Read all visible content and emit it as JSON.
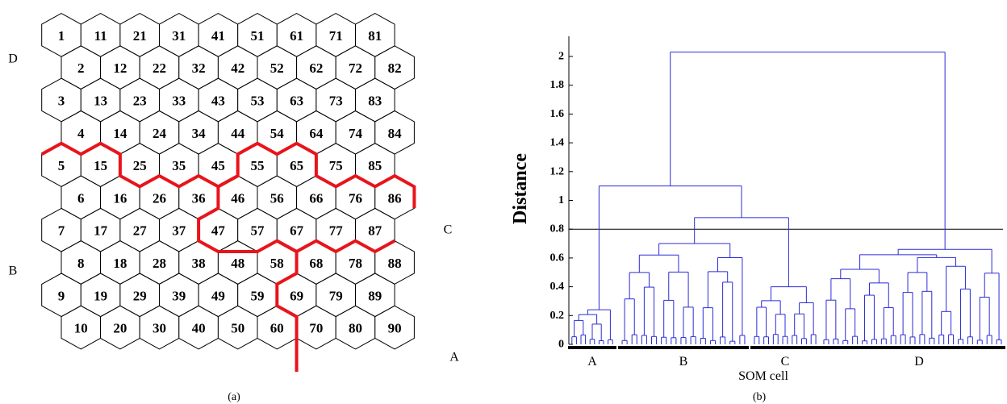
{
  "som_map": {
    "rows": [
      [
        1,
        11,
        21,
        31,
        41,
        51,
        61,
        71,
        81
      ],
      [
        2,
        12,
        22,
        32,
        42,
        52,
        62,
        72,
        82
      ],
      [
        3,
        13,
        23,
        33,
        43,
        53,
        63,
        73,
        83
      ],
      [
        4,
        14,
        24,
        34,
        44,
        54,
        64,
        74,
        84
      ],
      [
        5,
        15,
        25,
        35,
        45,
        55,
        65,
        75,
        85
      ],
      [
        6,
        16,
        26,
        36,
        46,
        56,
        66,
        76,
        86
      ],
      [
        7,
        17,
        27,
        37,
        47,
        57,
        67,
        77,
        87
      ],
      [
        8,
        18,
        28,
        38,
        48,
        58,
        68,
        78,
        88
      ],
      [
        9,
        19,
        29,
        39,
        49,
        59,
        69,
        79,
        89
      ],
      [
        10,
        20,
        30,
        40,
        50,
        60,
        70,
        80,
        90
      ]
    ],
    "region_labels": {
      "D": "D",
      "B": "B",
      "C": "C",
      "A": "A"
    },
    "boundary_color": "#e8141b",
    "caption": "(a)"
  },
  "chart_data": {
    "type": "dendrogram",
    "ylabel": "Distance",
    "xlabel": "SOM cell",
    "yticks": [
      "0",
      "0.2",
      "0.4",
      "0.6",
      "0.8",
      "1",
      "1.2",
      "1.4",
      "1.6",
      "1.8",
      "2"
    ],
    "ylim": [
      0,
      2.15
    ],
    "threshold": 0.8,
    "line_color": "#2b2bd9",
    "clusters": [
      {
        "label": "A",
        "merge_height": 0.24
      },
      {
        "label": "B",
        "merge_height": 0.7
      },
      {
        "label": "C",
        "merge_height": 0.4
      },
      {
        "label": "D",
        "merge_height": 0.66
      }
    ],
    "merges": [
      {
        "name": "B+C",
        "height": 0.88
      },
      {
        "name": "A+BC",
        "height": 1.1
      },
      {
        "name": "root",
        "height": 2.03
      }
    ],
    "caption": "(b)"
  }
}
